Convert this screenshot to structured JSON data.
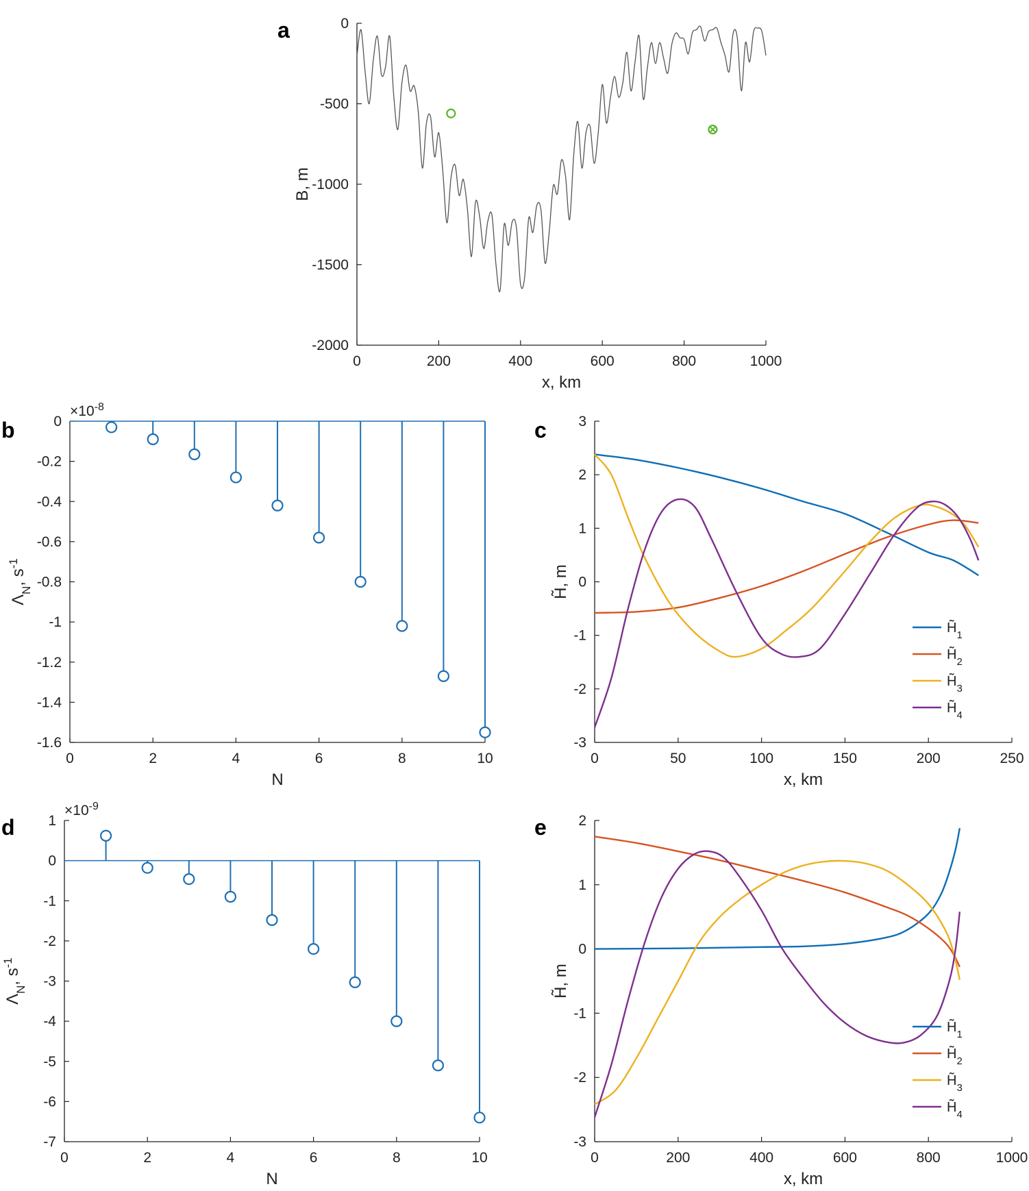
{
  "chart_data": [
    {
      "panel": "a",
      "type": "line",
      "xlabel": "x, km",
      "ylabel": "B, m",
      "xlim": [
        0,
        1000
      ],
      "ylim": [
        -2000,
        0
      ],
      "xticks": [
        "0",
        "200",
        "400",
        "600",
        "800",
        "1000"
      ],
      "yticks": [
        "0",
        "-500",
        "-1000",
        "-1500",
        "-2000"
      ],
      "series": [
        {
          "color": "#555555",
          "x": [
            0,
            10,
            20,
            30,
            40,
            50,
            60,
            70,
            80,
            90,
            100,
            110,
            120,
            130,
            140,
            150,
            160,
            170,
            180,
            190,
            200,
            210,
            220,
            230,
            240,
            250,
            260,
            270,
            280,
            290,
            300,
            310,
            320,
            330,
            340,
            350,
            360,
            370,
            380,
            390,
            400,
            410,
            420,
            430,
            440,
            450,
            460,
            470,
            480,
            490,
            500,
            510,
            520,
            530,
            540,
            550,
            560,
            570,
            580,
            590,
            600,
            610,
            620,
            630,
            640,
            650,
            660,
            670,
            680,
            690,
            700,
            710,
            720,
            730,
            740,
            750,
            760,
            770,
            780,
            790,
            800,
            810,
            820,
            830,
            840,
            850,
            860,
            870,
            880,
            890,
            900,
            910,
            920,
            930,
            940,
            950,
            960,
            970,
            980,
            990,
            1000
          ],
          "y": [
            -200,
            -40,
            -300,
            -500,
            -230,
            -80,
            -320,
            -270,
            -80,
            -450,
            -660,
            -370,
            -260,
            -420,
            -390,
            -550,
            -900,
            -620,
            -580,
            -830,
            -680,
            -920,
            -1240,
            -960,
            -880,
            -1070,
            -970,
            -1150,
            -1450,
            -1110,
            -1200,
            -1400,
            -1230,
            -1190,
            -1500,
            -1660,
            -1250,
            -1380,
            -1230,
            -1270,
            -1620,
            -1580,
            -1210,
            -1300,
            -1130,
            -1160,
            -1490,
            -1300,
            -1010,
            -1060,
            -850,
            -950,
            -1220,
            -820,
            -610,
            -900,
            -680,
            -640,
            -870,
            -680,
            -380,
            -620,
            -460,
            -330,
            -460,
            -370,
            -180,
            -420,
            -240,
            -80,
            -470,
            -280,
            -120,
            -250,
            -120,
            -220,
            -310,
            -130,
            -60,
            -90,
            -100,
            -190,
            -60,
            -40,
            -20,
            -110,
            -50,
            -40,
            -30,
            -120,
            -200,
            -300,
            -60,
            -90,
            -420,
            -120,
            -240,
            -50,
            -30,
            -50,
            -200
          ]
        }
      ],
      "markers": [
        {
          "x": 230,
          "y": -560,
          "color": "#5ab52f",
          "shape": "circle"
        },
        {
          "x": 870,
          "y": -660,
          "color": "#5ab52f",
          "shape": "circle-x"
        }
      ]
    },
    {
      "panel": "b",
      "type": "stem",
      "xlabel": "N",
      "ylabel": "ΛN, s-1",
      "exponent": "×10-8",
      "xlim": [
        0,
        10
      ],
      "ylim": [
        -1.6,
        0
      ],
      "xticks": [
        "0",
        "2",
        "4",
        "6",
        "8",
        "10"
      ],
      "yticks": [
        "0",
        "-0.2",
        "-0.4",
        "-0.6",
        "-0.8",
        "-1",
        "-1.2",
        "-1.4",
        "-1.6"
      ],
      "color": "#1f6fb3",
      "x": [
        1,
        2,
        3,
        4,
        5,
        6,
        7,
        8,
        9,
        10
      ],
      "y": [
        -0.03,
        -0.09,
        -0.165,
        -0.28,
        -0.42,
        -0.58,
        -0.8,
        -1.02,
        -1.27,
        -1.55
      ]
    },
    {
      "panel": "c",
      "type": "line",
      "xlabel": "x, km",
      "ylabel": "H̃, m",
      "xlim": [
        0,
        250
      ],
      "ylim": [
        -3,
        3
      ],
      "xticks": [
        "0",
        "50",
        "100",
        "150",
        "200",
        "250"
      ],
      "yticks": [
        "3",
        "2",
        "1",
        "0",
        "-1",
        "-2",
        "-3"
      ],
      "legend_position": "bottom-right",
      "series": [
        {
          "name": "H̃1",
          "color": "#0e6db5",
          "x": [
            0,
            25,
            50,
            75,
            100,
            125,
            150,
            175,
            200,
            215,
            230
          ],
          "y": [
            2.38,
            2.28,
            2.13,
            1.95,
            1.74,
            1.5,
            1.27,
            0.92,
            0.55,
            0.4,
            0.12
          ]
        },
        {
          "name": "H̃2",
          "color": "#d55423",
          "x": [
            0,
            25,
            50,
            75,
            100,
            125,
            150,
            175,
            200,
            215,
            230
          ],
          "y": [
            -0.58,
            -0.56,
            -0.48,
            -0.3,
            -0.08,
            0.2,
            0.52,
            0.83,
            1.07,
            1.15,
            1.1
          ]
        },
        {
          "name": "H̃3",
          "color": "#edb120",
          "x": [
            0,
            10,
            20,
            30,
            45,
            60,
            75,
            85,
            100,
            115,
            130,
            150,
            165,
            180,
            195,
            205,
            215,
            222,
            230
          ],
          "y": [
            2.38,
            2.0,
            1.2,
            0.45,
            -0.4,
            -0.95,
            -1.3,
            -1.4,
            -1.25,
            -0.9,
            -0.5,
            0.2,
            0.75,
            1.2,
            1.43,
            1.4,
            1.25,
            1.05,
            0.65
          ]
        },
        {
          "name": "H̃4",
          "color": "#7e2f8e",
          "x": [
            0,
            10,
            20,
            30,
            40,
            50,
            60,
            70,
            85,
            100,
            112,
            123,
            135,
            150,
            165,
            180,
            193,
            202,
            210,
            218,
            225,
            230
          ],
          "y": [
            -2.72,
            -1.8,
            -0.5,
            0.6,
            1.3,
            1.54,
            1.4,
            0.8,
            -0.2,
            -1.05,
            -1.35,
            -1.4,
            -1.25,
            -0.6,
            0.15,
            0.9,
            1.38,
            1.5,
            1.44,
            1.2,
            0.8,
            0.4
          ]
        }
      ]
    },
    {
      "panel": "d",
      "type": "stem",
      "xlabel": "N",
      "ylabel": "ΛN, s-1",
      "exponent": "×10-9",
      "xlim": [
        0,
        10
      ],
      "ylim": [
        -7,
        1
      ],
      "xticks": [
        "0",
        "2",
        "4",
        "6",
        "8",
        "10"
      ],
      "yticks": [
        "1",
        "0",
        "-1",
        "-2",
        "-3",
        "-4",
        "-5",
        "-6",
        "-7"
      ],
      "color": "#1f6fb3",
      "x": [
        1,
        2,
        3,
        4,
        5,
        6,
        7,
        8,
        9,
        10
      ],
      "y": [
        0.62,
        -0.18,
        -0.46,
        -0.9,
        -1.48,
        -2.2,
        -3.03,
        -4.0,
        -5.1,
        -6.4
      ]
    },
    {
      "panel": "e",
      "type": "line",
      "xlabel": "x, km",
      "ylabel": "H̃, m",
      "xlim": [
        0,
        1000
      ],
      "ylim": [
        -3,
        2
      ],
      "xticks": [
        "0",
        "200",
        "400",
        "600",
        "800",
        "1000"
      ],
      "yticks": [
        "2",
        "1",
        "0",
        "-1",
        "-2",
        "-3"
      ],
      "legend_position": "bottom-right",
      "series": [
        {
          "name": "H̃1",
          "color": "#0e6db5",
          "x": [
            0,
            200,
            400,
            500,
            600,
            700,
            750,
            800,
            830,
            850,
            865,
            875
          ],
          "y": [
            0.0,
            0.01,
            0.03,
            0.04,
            0.08,
            0.18,
            0.3,
            0.55,
            0.85,
            1.2,
            1.55,
            1.88
          ]
        },
        {
          "name": "H̃2",
          "color": "#d55423",
          "x": [
            0,
            100,
            200,
            300,
            400,
            500,
            600,
            700,
            750,
            800,
            840,
            860,
            875
          ],
          "y": [
            1.75,
            1.65,
            1.52,
            1.38,
            1.22,
            1.06,
            0.88,
            0.65,
            0.52,
            0.32,
            0.1,
            -0.08,
            -0.28
          ]
        },
        {
          "name": "H̃3",
          "color": "#edb120",
          "x": [
            0,
            50,
            100,
            150,
            200,
            250,
            300,
            350,
            400,
            450,
            500,
            550,
            600,
            650,
            700,
            750,
            800,
            840,
            860,
            875
          ],
          "y": [
            -2.42,
            -2.2,
            -1.7,
            -1.1,
            -0.5,
            0.1,
            0.5,
            0.78,
            1.0,
            1.18,
            1.3,
            1.36,
            1.37,
            1.33,
            1.22,
            1.0,
            0.7,
            0.3,
            -0.05,
            -0.48
          ]
        },
        {
          "name": "H̃4",
          "color": "#7e2f8e",
          "x": [
            0,
            40,
            80,
            120,
            160,
            200,
            240,
            275,
            310,
            350,
            400,
            450,
            500,
            550,
            600,
            650,
            700,
            740,
            780,
            820,
            850,
            865,
            875
          ],
          "y": [
            -2.62,
            -1.8,
            -0.8,
            0.1,
            0.8,
            1.25,
            1.48,
            1.52,
            1.42,
            1.1,
            0.6,
            0.0,
            -0.45,
            -0.85,
            -1.15,
            -1.35,
            -1.45,
            -1.46,
            -1.35,
            -1.05,
            -0.5,
            0.0,
            0.58
          ]
        }
      ]
    }
  ]
}
